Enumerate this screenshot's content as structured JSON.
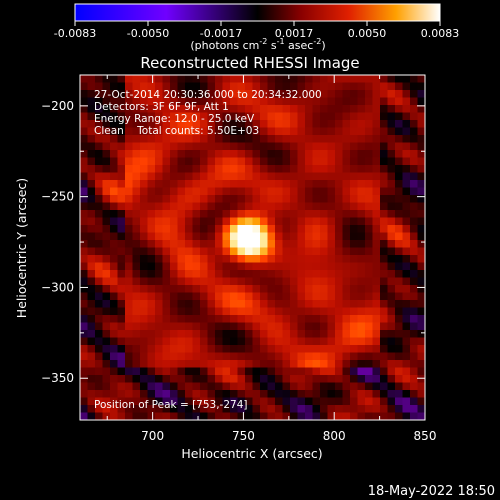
{
  "colorbar": {
    "ticks": [
      "-0.0083",
      "-0.0050",
      "-0.0017",
      "0.0017",
      "0.0050",
      "0.0083"
    ],
    "label_main": "(photons cm",
    "label_exp1": "-2",
    "label_mid": " s",
    "label_exp2": "-1",
    "label_mid2": " asec",
    "label_exp3": "-2",
    "label_end": ")"
  },
  "title": "Reconstructed RHESSI Image",
  "info": {
    "time": "27-Oct-2014 20:30:36.000 to 20:34:32.000",
    "detectors": "Detectors: 3F 6F 9F, Att 1",
    "energy": "Energy Range: 12.0 - 25.0 keV",
    "clean": "Clean    Total counts: 5.50E+03",
    "peak": "Position of Peak = [753,-274]"
  },
  "footer": {
    "timestamp": "18-May-2022 18:50"
  },
  "chart_data": {
    "type": "heatmap",
    "title": "Reconstructed RHESSI Image",
    "xlabel": "Heliocentric X (arcsec)",
    "ylabel": "Heliocentric Y (arcsec)",
    "xlim": [
      660,
      850
    ],
    "ylim": [
      -373,
      -183
    ],
    "xticks": [
      700,
      750,
      800,
      850
    ],
    "yticks": [
      -200,
      -250,
      -300,
      -350
    ],
    "colorbar_range": [
      -0.0083,
      0.0083
    ],
    "peak": {
      "x": 753,
      "y": -274
    },
    "colormap": {
      "negative": [
        "#0000ff",
        "#5a00ff",
        "#a000ff",
        "#000000"
      ],
      "positive": [
        "#000000",
        "#6a0000",
        "#c01000",
        "#ff4000",
        "#ff9a00",
        "#ffe070",
        "#ffffff"
      ]
    }
  }
}
